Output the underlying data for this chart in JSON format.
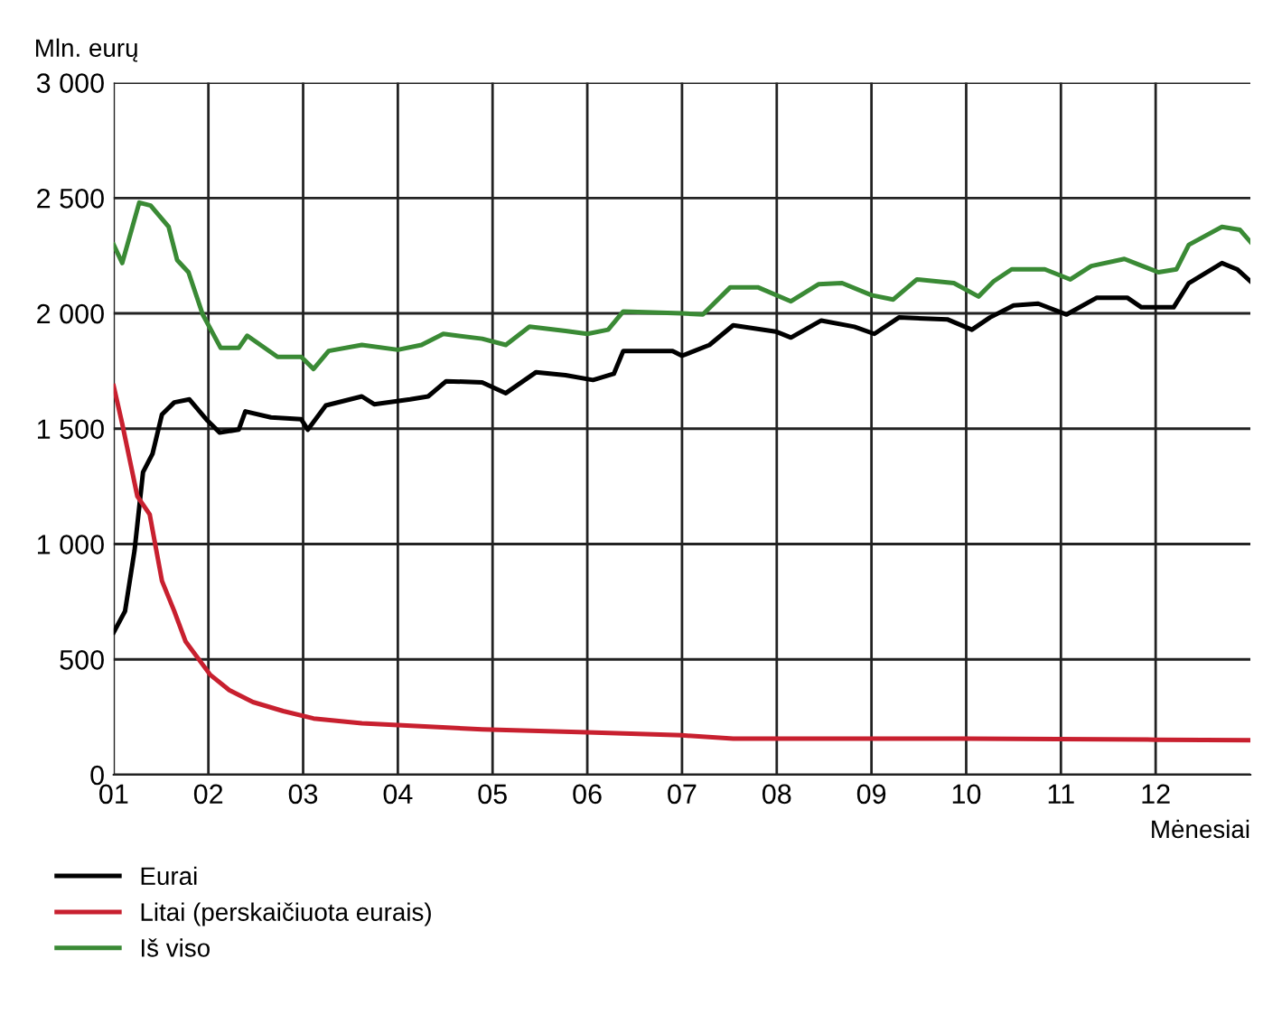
{
  "chart_data": {
    "type": "line",
    "ylabel": "Mln. eurų",
    "xlabel": "Mėnesiai",
    "xlim": [
      1,
      13
    ],
    "xticks": [
      {
        "value": 1,
        "label": "01"
      },
      {
        "value": 2,
        "label": "02"
      },
      {
        "value": 3,
        "label": "03"
      },
      {
        "value": 4,
        "label": "04"
      },
      {
        "value": 5,
        "label": "05"
      },
      {
        "value": 6,
        "label": "06"
      },
      {
        "value": 7,
        "label": "07"
      },
      {
        "value": 8,
        "label": "08"
      },
      {
        "value": 9,
        "label": "09"
      },
      {
        "value": 10,
        "label": "10"
      },
      {
        "value": 11,
        "label": "11"
      },
      {
        "value": 12,
        "label": "12"
      }
    ],
    "ylim": [
      0,
      3000
    ],
    "yticks": [
      0,
      500,
      {
        "value": 1000,
        "label": "1 000"
      },
      {
        "value": 1500,
        "label": "1 500"
      },
      {
        "value": 2000,
        "label": "2 000"
      },
      {
        "value": 2500,
        "label": "2 500"
      },
      {
        "value": 3000,
        "label": "3 000"
      }
    ],
    "grid": true,
    "legend": "bottom",
    "marker": "none",
    "line_style": "solid",
    "series": [
      {
        "name": "Eurai",
        "color": "#000000",
        "x": [
          1.0,
          1.12,
          1.22,
          1.31,
          1.41,
          1.51,
          1.64,
          1.8,
          1.99,
          2.12,
          2.32,
          2.39,
          2.66,
          2.98,
          3.05,
          3.24,
          3.62,
          3.75,
          4.13,
          4.32,
          4.51,
          4.89,
          5.14,
          5.46,
          5.77,
          6.06,
          6.28,
          6.38,
          6.9,
          7.0,
          7.29,
          7.54,
          7.99,
          8.15,
          8.47,
          8.82,
          9.03,
          9.29,
          9.8,
          10.06,
          10.25,
          10.5,
          10.76,
          11.06,
          11.38,
          11.7,
          11.85,
          12.19,
          12.35,
          12.7,
          12.86,
          13.0
        ],
        "values": [
          617,
          709,
          971,
          1312,
          1391,
          1562,
          1614,
          1627,
          1535,
          1483,
          1496,
          1575,
          1549,
          1541,
          1496,
          1601,
          1640,
          1606,
          1627,
          1640,
          1706,
          1701,
          1654,
          1745,
          1732,
          1711,
          1738,
          1837,
          1837,
          1816,
          1863,
          1948,
          1921,
          1895,
          1969,
          1942,
          1911,
          1982,
          1974,
          1929,
          1982,
          2034,
          2042,
          1995,
          2068,
          2068,
          2026,
          2026,
          2131,
          2218,
          2191,
          2139
        ]
      },
      {
        "name": "Litai (perskaičiuota eurais)",
        "color": "#c8202f",
        "x": [
          1.0,
          1.09,
          1.25,
          1.38,
          1.51,
          1.64,
          1.76,
          2.02,
          2.22,
          2.47,
          2.79,
          3.11,
          3.62,
          4.0,
          4.89,
          6.0,
          7.0,
          7.54,
          10.0,
          12.0,
          13.0
        ],
        "values": [
          1685,
          1522,
          1207,
          1129,
          840,
          709,
          577,
          433,
          367,
          315,
          276,
          244,
          223,
          215,
          197,
          184,
          171,
          157,
          157,
          152,
          150
        ]
      },
      {
        "name": "Iš viso",
        "color": "#3a8a35",
        "x": [
          1.0,
          1.09,
          1.27,
          1.39,
          1.58,
          1.67,
          1.79,
          1.94,
          2.13,
          2.32,
          2.41,
          2.73,
          2.98,
          3.11,
          3.27,
          3.62,
          4.0,
          4.25,
          4.48,
          4.89,
          5.14,
          5.39,
          5.77,
          6.0,
          6.22,
          6.38,
          7.0,
          7.22,
          7.51,
          7.8,
          8.15,
          8.44,
          8.69,
          9.0,
          9.23,
          9.48,
          9.87,
          10.13,
          10.29,
          10.48,
          10.83,
          11.1,
          11.32,
          11.67,
          11.83,
          12.03,
          12.22,
          12.35,
          12.7,
          12.89,
          13.0
        ],
        "values": [
          2297,
          2218,
          2480,
          2467,
          2375,
          2231,
          2178,
          1995,
          1850,
          1850,
          1903,
          1811,
          1811,
          1759,
          1837,
          1863,
          1842,
          1863,
          1911,
          1890,
          1863,
          1942,
          1924,
          1911,
          1929,
          2008,
          2000,
          1995,
          2113,
          2113,
          2052,
          2126,
          2131,
          2079,
          2060,
          2147,
          2131,
          2073,
          2139,
          2191,
          2191,
          2147,
          2205,
          2236,
          2210,
          2178,
          2191,
          2297,
          2375,
          2362,
          2310
        ]
      }
    ]
  }
}
